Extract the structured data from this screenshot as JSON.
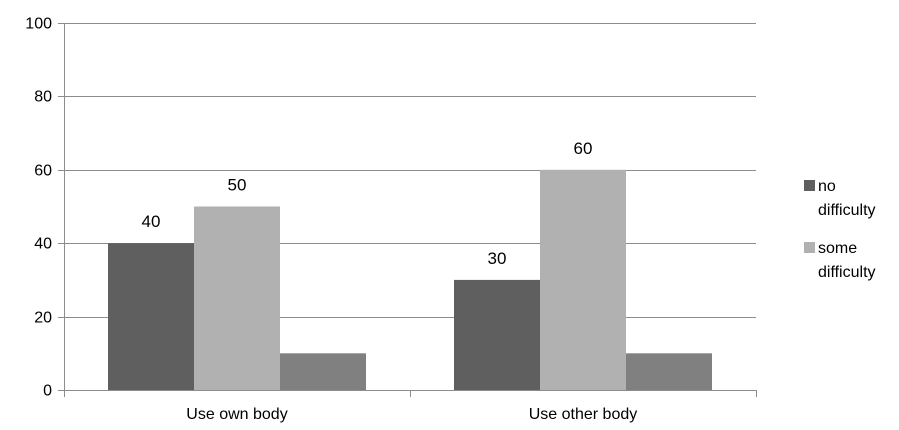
{
  "chart_data": {
    "type": "bar",
    "categories": [
      "Use own body",
      "Use other body"
    ],
    "series": [
      {
        "name": "no difficulty",
        "values": [
          40,
          30
        ],
        "color": "#5f5f5f",
        "labeled": true
      },
      {
        "name": "some difficulty",
        "values": [
          50,
          60
        ],
        "color": "#b1b1b1",
        "labeled": true
      },
      {
        "name": "",
        "values": [
          10,
          10
        ],
        "color": "#808080",
        "labeled": false
      }
    ],
    "ylim": [
      0,
      100
    ],
    "yticks": [
      0,
      20,
      40,
      60,
      80,
      100
    ],
    "grid": true,
    "legend": {
      "position": "right",
      "entries": [
        {
          "line1": "no",
          "line2": "difficulty",
          "color": "#5f5f5f"
        },
        {
          "line1": "some",
          "line2": "difficulty",
          "color": "#b1b1b1"
        }
      ]
    },
    "title": "",
    "xlabel": "",
    "ylabel": ""
  }
}
